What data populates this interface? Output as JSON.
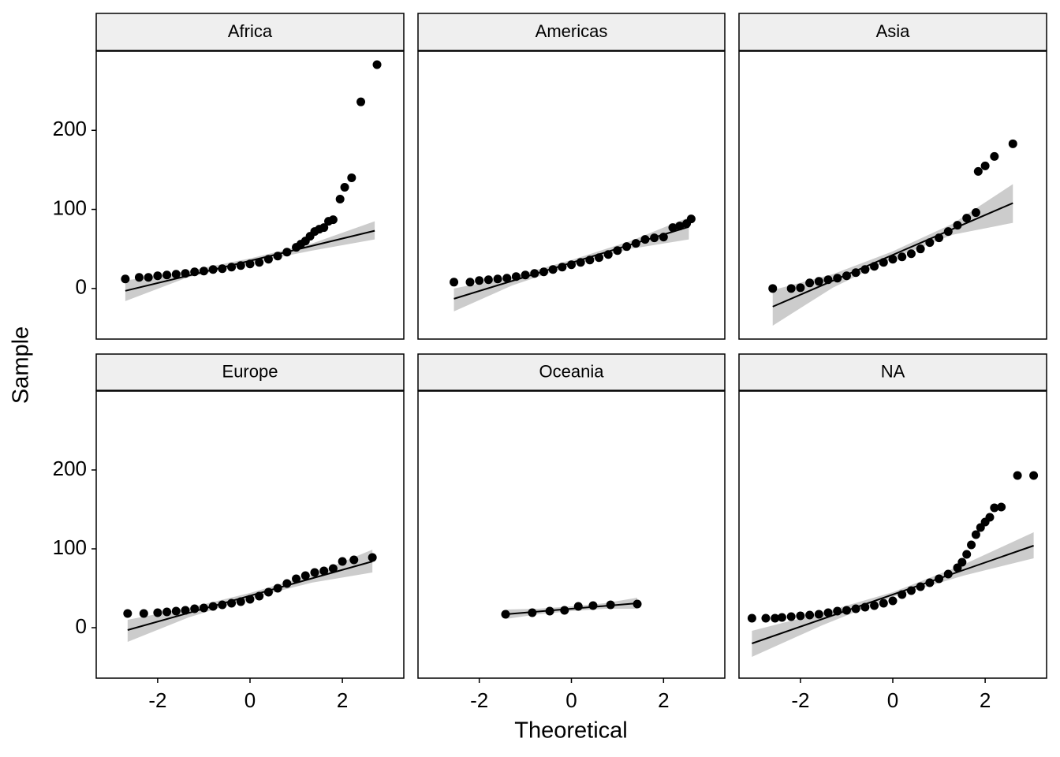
{
  "chart_data": {
    "type": "scatter",
    "x_label": "Theoretical",
    "y_label": "Sample",
    "xlim": [
      -3.33,
      3.33
    ],
    "ylim": [
      -64,
      300
    ],
    "xticks": [
      -2,
      0,
      2
    ],
    "yticks": [
      0,
      100,
      200
    ],
    "point_color": "#000000",
    "band_color": "#cccccc",
    "facets": [
      {
        "title": "Africa",
        "x": [
          -2.7,
          -2.4,
          -2.2,
          -2.0,
          -1.8,
          -1.6,
          -1.4,
          -1.2,
          -1.0,
          -0.8,
          -0.6,
          -0.4,
          -0.2,
          0,
          0.2,
          0.4,
          0.6,
          0.8,
          1.0,
          1.1,
          1.2,
          1.3,
          1.4,
          1.5,
          1.6,
          1.7,
          1.8,
          1.95,
          2.05,
          2.2,
          2.4,
          2.75
        ],
        "y": [
          12,
          14,
          14,
          16,
          17,
          18,
          19,
          21,
          22,
          24,
          25,
          27,
          29,
          31,
          33,
          37,
          41,
          46,
          52,
          56,
          60,
          66,
          72,
          75,
          77,
          85,
          87,
          113,
          128,
          140,
          236,
          283
        ],
        "line_x": [
          -2.7,
          2.7
        ],
        "line_y": [
          -3,
          73
        ],
        "band_x": [
          -2.7,
          -1.35,
          0,
          1.35,
          2.7
        ],
        "band_lower": [
          -16,
          14,
          32,
          48,
          62
        ],
        "band_upper": [
          10,
          22,
          38,
          57,
          85
        ]
      },
      {
        "title": "Americas",
        "x": [
          -2.55,
          -2.2,
          -2.0,
          -1.8,
          -1.6,
          -1.4,
          -1.2,
          -1.0,
          -0.8,
          -0.6,
          -0.4,
          -0.2,
          0,
          0.2,
          0.4,
          0.6,
          0.8,
          1.0,
          1.2,
          1.4,
          1.6,
          1.8,
          2.0,
          2.2,
          2.35,
          2.5,
          2.6
        ],
        "y": [
          8,
          8,
          10,
          11,
          12,
          13,
          15,
          17,
          19,
          21,
          24,
          27,
          30,
          33,
          36,
          39,
          43,
          48,
          53,
          57,
          62,
          64,
          65,
          77,
          79,
          82,
          88
        ],
        "line_x": [
          -2.55,
          2.55
        ],
        "line_y": [
          -13,
          78
        ],
        "band_x": [
          -2.55,
          -1.28,
          0,
          1.28,
          2.55
        ],
        "band_lower": [
          -29,
          4,
          29,
          50,
          62
        ],
        "band_upper": [
          0,
          15,
          36,
          60,
          90
        ]
      },
      {
        "title": "Asia",
        "x": [
          -2.6,
          -2.2,
          -2.0,
          -1.8,
          -1.6,
          -1.4,
          -1.2,
          -1.0,
          -0.8,
          -0.6,
          -0.4,
          -0.2,
          0,
          0.2,
          0.4,
          0.6,
          0.8,
          1.0,
          1.2,
          1.4,
          1.6,
          1.8,
          1.85,
          2.0,
          2.2,
          2.6
        ],
        "y": [
          0,
          0,
          1,
          7,
          9,
          11,
          13,
          16,
          20,
          24,
          28,
          33,
          37,
          40,
          44,
          50,
          58,
          64,
          72,
          80,
          89,
          96,
          148,
          155,
          167,
          183
        ],
        "line_x": [
          -2.6,
          2.6
        ],
        "line_y": [
          -23,
          108
        ],
        "band_x": [
          -2.6,
          -1.3,
          0,
          1.3,
          2.6
        ],
        "band_lower": [
          -47,
          1,
          38,
          68,
          83
        ],
        "band_upper": [
          -2,
          18,
          47,
          82,
          132
        ]
      },
      {
        "title": "Europe",
        "x": [
          -2.65,
          -2.3,
          -2.0,
          -1.8,
          -1.6,
          -1.4,
          -1.2,
          -1.0,
          -0.8,
          -0.6,
          -0.4,
          -0.2,
          0,
          0.2,
          0.4,
          0.6,
          0.8,
          1.0,
          1.2,
          1.4,
          1.6,
          1.8,
          2.0,
          2.25,
          2.65
        ],
        "y": [
          18,
          18,
          19,
          20,
          21,
          22,
          24,
          25,
          27,
          29,
          31,
          33,
          36,
          40,
          45,
          50,
          56,
          62,
          66,
          70,
          72,
          75,
          84,
          86,
          89
        ],
        "line_x": [
          -2.65,
          2.65
        ],
        "line_y": [
          -3,
          84
        ],
        "band_x": [
          -2.65,
          -1.33,
          0,
          1.33,
          2.65
        ],
        "band_lower": [
          -18,
          13,
          37,
          57,
          70
        ],
        "band_upper": [
          10,
          25,
          44,
          67,
          99
        ]
      },
      {
        "title": "Oceania",
        "x": [
          -1.43,
          -0.85,
          -0.47,
          -0.15,
          0.15,
          0.47,
          0.85,
          1.43
        ],
        "y": [
          17,
          19,
          21,
          22,
          27,
          28,
          29,
          30
        ],
        "line_x": [
          -1.43,
          1.43
        ],
        "line_y": [
          17,
          31
        ],
        "band_x": [
          -1.43,
          -0.72,
          0,
          0.72,
          1.43
        ],
        "band_lower": [
          11,
          17,
          21,
          24,
          24
        ],
        "band_upper": [
          23,
          24,
          27,
          31,
          38
        ]
      },
      {
        "title": "NA",
        "x": [
          -3.05,
          -2.75,
          -2.55,
          -2.4,
          -2.2,
          -2.0,
          -1.8,
          -1.6,
          -1.4,
          -1.2,
          -1.0,
          -0.8,
          -0.6,
          -0.4,
          -0.2,
          0,
          0.2,
          0.4,
          0.6,
          0.8,
          1.0,
          1.2,
          1.4,
          1.5,
          1.6,
          1.7,
          1.8,
          1.9,
          2.0,
          2.1,
          2.2,
          2.35,
          2.7,
          3.05
        ],
        "y": [
          12,
          12,
          12,
          13,
          14,
          15,
          16,
          17,
          19,
          21,
          22,
          24,
          26,
          28,
          31,
          34,
          42,
          47,
          52,
          57,
          62,
          68,
          76,
          83,
          93,
          105,
          118,
          127,
          134,
          140,
          152,
          153,
          193,
          193
        ],
        "line_x": [
          -3.05,
          3.05
        ],
        "line_y": [
          -20,
          104
        ],
        "band_x": [
          -3.05,
          -1.53,
          0,
          1.53,
          3.05
        ],
        "band_lower": [
          -37,
          3,
          39,
          66,
          88
        ],
        "band_upper": [
          -4,
          19,
          45,
          80,
          121
        ]
      }
    ]
  }
}
